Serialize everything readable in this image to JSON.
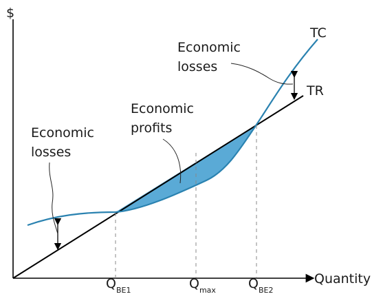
{
  "diagram": {
    "y_axis_label": "$",
    "x_axis_label": "Quantity",
    "tc_label": "TC",
    "tr_label": "TR",
    "losses_left": [
      "Economic",
      "losses"
    ],
    "profits": [
      "Economic",
      "profits"
    ],
    "losses_right": [
      "Economic",
      "losses"
    ],
    "q_be1": {
      "main": "Q",
      "sub": "BE1"
    },
    "q_max": {
      "main": "Q",
      "sub": "max"
    },
    "q_be2": {
      "main": "Q",
      "sub": "BE2"
    },
    "colors": {
      "tc_curve": "#2a82b0",
      "tr_line": "#000000",
      "profit_fill": "#5aaad6",
      "axes": "#000000",
      "guide": "#888888"
    }
  }
}
